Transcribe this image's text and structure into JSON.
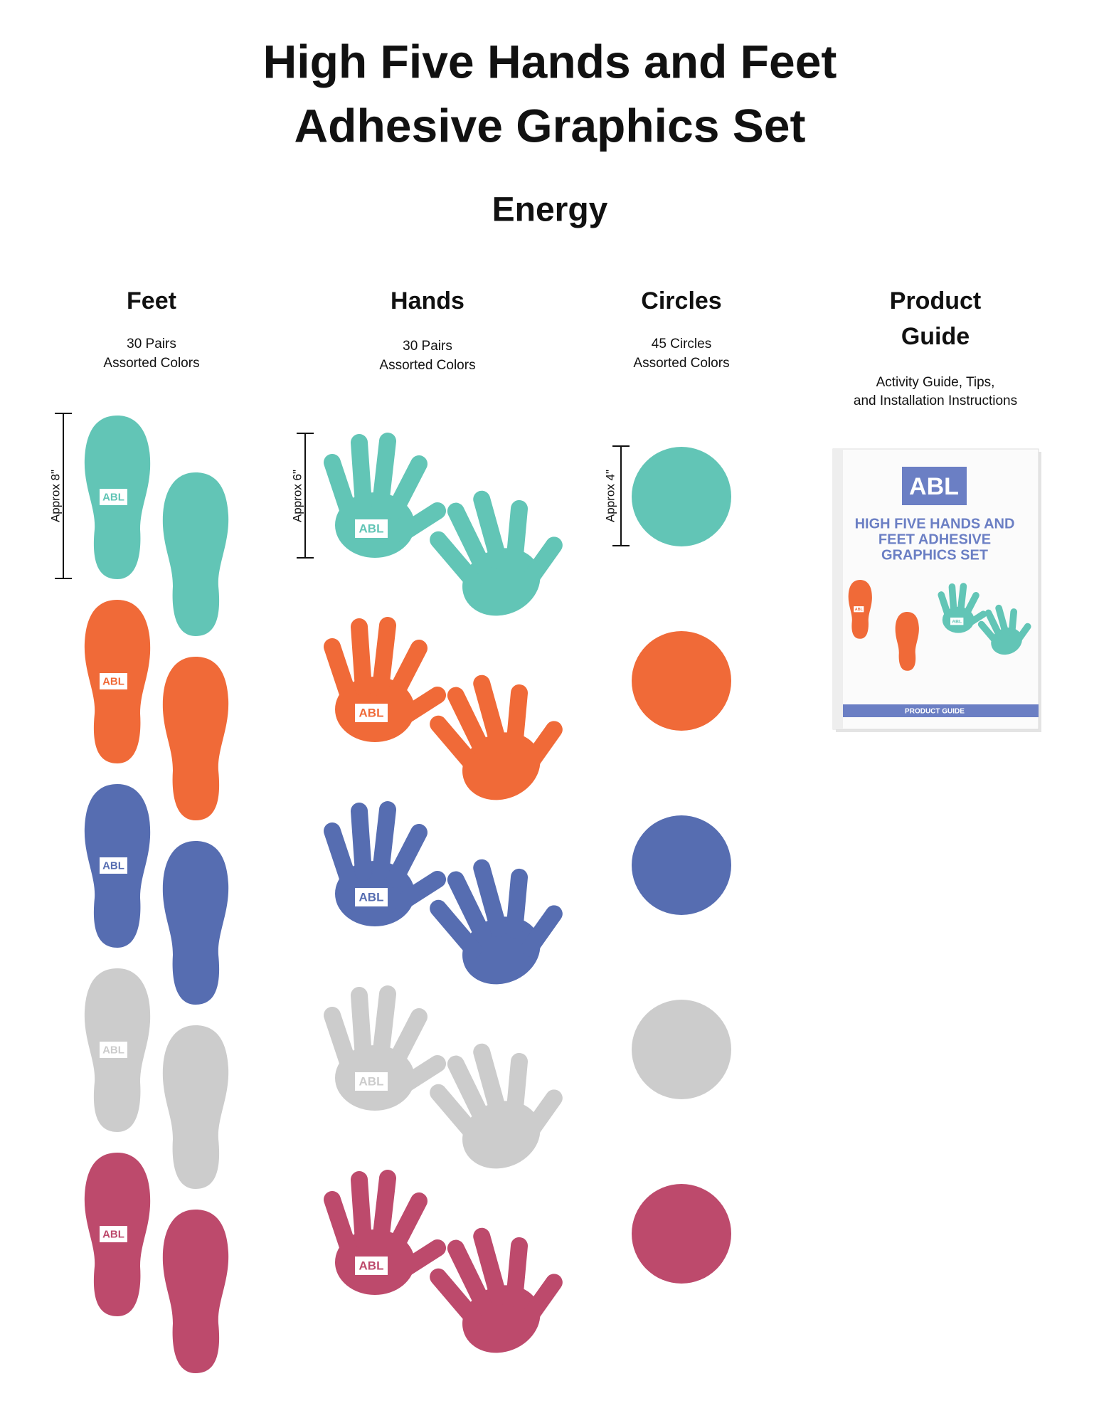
{
  "header": {
    "title_lines": [
      "High Five Hands and Feet",
      "Adhesive Graphics Set"
    ],
    "subtitle": "Energy"
  },
  "brand": "ABL",
  "colors": [
    "#62c5b6",
    "#f06a38",
    "#566db1",
    "#cccccc",
    "#bd4a6c"
  ],
  "columns": [
    {
      "title": "Feet",
      "details": [
        "30 Pairs",
        "Assorted Colors"
      ],
      "size": "Approx 8\""
    },
    {
      "title": "Hands",
      "details": [
        "30 Pairs",
        "Assorted Colors"
      ],
      "size": "Approx 6\""
    },
    {
      "title": "Circles",
      "details": [
        "45 Circles",
        "Assorted Colors"
      ],
      "size": "Approx 4\""
    }
  ],
  "guide": {
    "title_lines": [
      "Product",
      "Guide"
    ],
    "details": [
      "Activity Guide, Tips,",
      "and Installation Instructions"
    ],
    "book": {
      "title_lines": [
        "HIGH FIVE HANDS AND",
        "FEET ADHESIVE",
        "GRAPHICS SET"
      ],
      "footer": "PRODUCT GUIDE"
    }
  }
}
